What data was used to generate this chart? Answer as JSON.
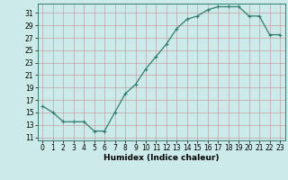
{
  "x": [
    0,
    1,
    2,
    3,
    4,
    5,
    6,
    7,
    8,
    9,
    10,
    11,
    12,
    13,
    14,
    15,
    16,
    17,
    18,
    19,
    20,
    21,
    22,
    23
  ],
  "y": [
    16,
    15,
    13.5,
    13.5,
    13.5,
    12,
    12,
    15,
    18,
    19.5,
    22,
    24,
    26,
    28.5,
    30,
    30.5,
    31.5,
    32,
    32,
    32,
    30.5,
    30.5,
    27.5,
    27.5
  ],
  "line_color": "#2e7d6e",
  "marker": "+",
  "marker_size": 3,
  "marker_lw": 0.8,
  "bg_color": "#cceaea",
  "grid_color": "#c4a0a0",
  "xlabel": "Humidex (Indice chaleur)",
  "xlim": [
    -0.5,
    23.5
  ],
  "ylim": [
    10.5,
    32.5
  ],
  "yticks": [
    11,
    13,
    15,
    17,
    19,
    21,
    23,
    25,
    27,
    29,
    31
  ],
  "xticks": [
    0,
    1,
    2,
    3,
    4,
    5,
    6,
    7,
    8,
    9,
    10,
    11,
    12,
    13,
    14,
    15,
    16,
    17,
    18,
    19,
    20,
    21,
    22,
    23
  ],
  "label_fontsize": 6.5,
  "tick_fontsize": 5.5,
  "line_width": 0.9
}
